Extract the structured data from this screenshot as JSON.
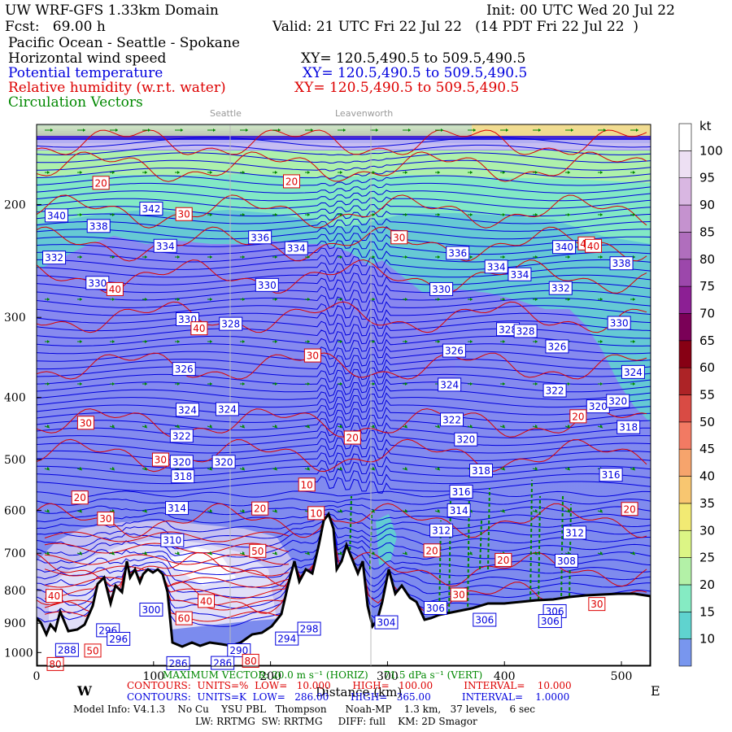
{
  "header": {
    "model": "UW WRF-GFS 1.33km Domain",
    "init": "Init: 00 UTC Wed 20 Jul 22",
    "fcst": "Fcst:   69.00 h",
    "valid": "Valid: 21 UTC Fri 22 Jul 22   (14 PDT Fri 22 Jul 22  )",
    "region": "Pacific Ocean - Seattle - Spokane",
    "field1": "Horizontal wind speed",
    "field2": "Potential temperature",
    "field3": "Relative humidity (w.r.t. water)",
    "field4": "Circulation Vectors",
    "xy1": "XY= 120.5,490.5 to 509.5,490.5",
    "xy2": "XY= 120.5,490.5 to 509.5,490.5",
    "xy3": "XY= 120.5,490.5 to 509.5,490.5"
  },
  "locations": [
    "Seattle",
    "Leavenworth"
  ],
  "footer": {
    "west": "W",
    "east": "E",
    "xlabel": "Distance (km)",
    "max_vector": "MAXIMUM VECTOR: 20.0 m s⁻¹ (HORIZ)     71.5 dPa s⁻¹ (VERT)",
    "contours_rh": "CONTOURS:  UNITS=%  LOW=   10.000       HIGH=   100.00          INTERVAL=    10.000",
    "contours_th": "CONTOURS:  UNITS=K  LOW=   286.00       HIGH=   365.00          INTERVAL=    1.0000",
    "model_info": "Model Info: V4.1.3    No Cu    YSU PBL   Thompson      Noah-MP    1.3 km,   37 levels,    6 sec",
    "model_info2": "LW: RRTMG  SW: RRTMG     DIFF: full    KM: 2D Smagor"
  },
  "colors": {
    "theta": "#0000dd",
    "rh": "#dd0000",
    "vectors": "#008800",
    "terrain": "#ffffff"
  },
  "chart_data": {
    "type": "heatmap",
    "xlabel": "Distance (km)",
    "ylabel": "",
    "xlim": [
      0,
      525
    ],
    "ylim": [
      1050,
      150
    ],
    "yscale": "log",
    "x_ticks": [
      0,
      100,
      200,
      300,
      400,
      500
    ],
    "y_ticks": [
      200,
      300,
      400,
      500,
      600,
      700,
      800,
      900,
      1000
    ],
    "colorbar": {
      "unit": "kt",
      "levels": [
        10,
        15,
        20,
        25,
        30,
        35,
        40,
        45,
        50,
        55,
        60,
        65,
        70,
        75,
        80,
        85,
        90,
        95,
        100
      ],
      "colors": [
        "#7896ee",
        "#5fd3cf",
        "#85ebc3",
        "#b3f1a7",
        "#dcf585",
        "#f2ea73",
        "#f8c670",
        "#f6a46c",
        "#f27a63",
        "#d94b44",
        "#ad2326",
        "#870014",
        "#7a0057",
        "#8c1f94",
        "#9c47ab",
        "#b06ebd",
        "#c592cf",
        "#d9b7e2",
        "#ede0f3",
        "#ffffff"
      ]
    },
    "theta_labels": [
      {
        "x": 17,
        "p": 208,
        "v": "340"
      },
      {
        "x": 53,
        "p": 216,
        "v": "338"
      },
      {
        "x": 98,
        "p": 203,
        "v": "342"
      },
      {
        "x": 15,
        "p": 242,
        "v": "332"
      },
      {
        "x": 110,
        "p": 232,
        "v": "334"
      },
      {
        "x": 191,
        "p": 225,
        "v": "336"
      },
      {
        "x": 222,
        "p": 234,
        "v": "334"
      },
      {
        "x": 52,
        "p": 265,
        "v": "330"
      },
      {
        "x": 197,
        "p": 267,
        "v": "330"
      },
      {
        "x": 129,
        "p": 302,
        "v": "330"
      },
      {
        "x": 166,
        "p": 307,
        "v": "328"
      },
      {
        "x": 360,
        "p": 238,
        "v": "336"
      },
      {
        "x": 393,
        "p": 250,
        "v": "334"
      },
      {
        "x": 413,
        "p": 257,
        "v": "334"
      },
      {
        "x": 451,
        "p": 233,
        "v": "340"
      },
      {
        "x": 448,
        "p": 270,
        "v": "332"
      },
      {
        "x": 500,
        "p": 247,
        "v": "338"
      },
      {
        "x": 346,
        "p": 271,
        "v": "330"
      },
      {
        "x": 403,
        "p": 313,
        "v": "328"
      },
      {
        "x": 418,
        "p": 315,
        "v": "328"
      },
      {
        "x": 445,
        "p": 333,
        "v": "326"
      },
      {
        "x": 357,
        "p": 338,
        "v": "326"
      },
      {
        "x": 498,
        "p": 306,
        "v": "330"
      },
      {
        "x": 510,
        "p": 365,
        "v": "324"
      },
      {
        "x": 126,
        "p": 361,
        "v": "326"
      },
      {
        "x": 353,
        "p": 382,
        "v": "324"
      },
      {
        "x": 443,
        "p": 390,
        "v": "322"
      },
      {
        "x": 480,
        "p": 413,
        "v": "320"
      },
      {
        "x": 497,
        "p": 405,
        "v": "320"
      },
      {
        "x": 355,
        "p": 433,
        "v": "322"
      },
      {
        "x": 129,
        "p": 418,
        "v": "324"
      },
      {
        "x": 163,
        "p": 417,
        "v": "324"
      },
      {
        "x": 124,
        "p": 459,
        "v": "322"
      },
      {
        "x": 367,
        "p": 465,
        "v": "320"
      },
      {
        "x": 506,
        "p": 445,
        "v": "318"
      },
      {
        "x": 124,
        "p": 504,
        "v": "320"
      },
      {
        "x": 160,
        "p": 504,
        "v": "320"
      },
      {
        "x": 380,
        "p": 520,
        "v": "318"
      },
      {
        "x": 491,
        "p": 528,
        "v": "316"
      },
      {
        "x": 125,
        "p": 531,
        "v": "318"
      },
      {
        "x": 363,
        "p": 561,
        "v": "316"
      },
      {
        "x": 120,
        "p": 595,
        "v": "314"
      },
      {
        "x": 361,
        "p": 600,
        "v": "314"
      },
      {
        "x": 346,
        "p": 645,
        "v": "312"
      },
      {
        "x": 460,
        "p": 650,
        "v": "312"
      },
      {
        "x": 116,
        "p": 668,
        "v": "310"
      },
      {
        "x": 453,
        "p": 719,
        "v": "308"
      },
      {
        "x": 98,
        "p": 857,
        "v": "300"
      },
      {
        "x": 341,
        "p": 852,
        "v": "306"
      },
      {
        "x": 443,
        "p": 862,
        "v": "306"
      },
      {
        "x": 383,
        "p": 889,
        "v": "306"
      },
      {
        "x": 439,
        "p": 893,
        "v": "306"
      },
      {
        "x": 299,
        "p": 897,
        "v": "304"
      },
      {
        "x": 61,
        "p": 923,
        "v": "296"
      },
      {
        "x": 70,
        "p": 952,
        "v": "296"
      },
      {
        "x": 214,
        "p": 951,
        "v": "294"
      },
      {
        "x": 233,
        "p": 918,
        "v": "298"
      },
      {
        "x": 26,
        "p": 991,
        "v": "288"
      },
      {
        "x": 173,
        "p": 992,
        "v": "290"
      },
      {
        "x": 121,
        "p": 1039,
        "v": "286"
      },
      {
        "x": 159,
        "p": 1038,
        "v": "286"
      }
    ],
    "rh_labels": [
      {
        "x": 55,
        "p": 185,
        "v": "20"
      },
      {
        "x": 218,
        "p": 184,
        "v": "20"
      },
      {
        "x": 126,
        "p": 207,
        "v": "30"
      },
      {
        "x": 310,
        "p": 225,
        "v": "30"
      },
      {
        "x": 67,
        "p": 271,
        "v": "40"
      },
      {
        "x": 139,
        "p": 312,
        "v": "40"
      },
      {
        "x": 236,
        "p": 344,
        "v": "30"
      },
      {
        "x": 470,
        "p": 230,
        "v": "40"
      },
      {
        "x": 476,
        "p": 232,
        "v": "40"
      },
      {
        "x": 42,
        "p": 438,
        "v": "30"
      },
      {
        "x": 270,
        "p": 462,
        "v": "20"
      },
      {
        "x": 463,
        "p": 428,
        "v": "20"
      },
      {
        "x": 106,
        "p": 500,
        "v": "30"
      },
      {
        "x": 231,
        "p": 547,
        "v": "10"
      },
      {
        "x": 37,
        "p": 573,
        "v": "20"
      },
      {
        "x": 191,
        "p": 596,
        "v": "20"
      },
      {
        "x": 239,
        "p": 606,
        "v": "10"
      },
      {
        "x": 507,
        "p": 597,
        "v": "20"
      },
      {
        "x": 59,
        "p": 618,
        "v": "30"
      },
      {
        "x": 189,
        "p": 694,
        "v": "50"
      },
      {
        "x": 338,
        "p": 693,
        "v": "20"
      },
      {
        "x": 399,
        "p": 717,
        "v": "20"
      },
      {
        "x": 15,
        "p": 816,
        "v": "40"
      },
      {
        "x": 361,
        "p": 812,
        "v": "30"
      },
      {
        "x": 479,
        "p": 840,
        "v": "30"
      },
      {
        "x": 145,
        "p": 831,
        "v": "40"
      },
      {
        "x": 126,
        "p": 884,
        "v": "60"
      },
      {
        "x": 48,
        "p": 993,
        "v": "50"
      },
      {
        "x": 183,
        "p": 1030,
        "v": "80"
      },
      {
        "x": 16,
        "p": 1042,
        "v": "80"
      }
    ]
  }
}
